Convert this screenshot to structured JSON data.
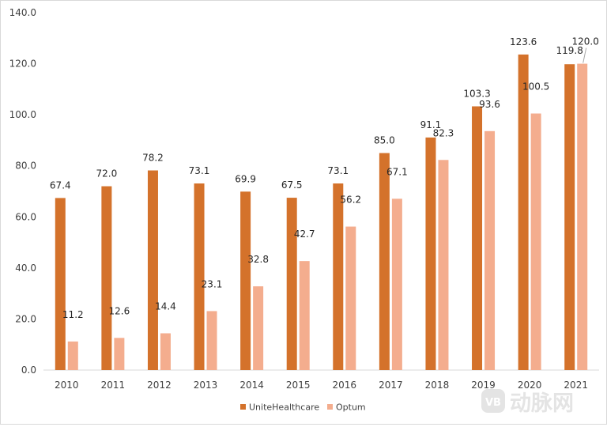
{
  "chart_data": {
    "type": "bar",
    "title": "",
    "xlabel": "",
    "ylabel": "",
    "ylim": [
      0,
      140
    ],
    "yticks": [
      "0.0",
      "20.0",
      "40.0",
      "60.0",
      "80.0",
      "100.0",
      "120.0",
      "140.0"
    ],
    "categories": [
      "2010",
      "2011",
      "2012",
      "2013",
      "2014",
      "2015",
      "2016",
      "2017",
      "2018",
      "2019",
      "2020",
      "2021"
    ],
    "series": [
      {
        "name": "UniteHealthcare",
        "color": "#D4722B",
        "values": [
          67.4,
          72.0,
          78.2,
          73.1,
          69.9,
          67.5,
          73.1,
          85.0,
          91.1,
          103.3,
          123.6,
          119.8
        ],
        "labels": [
          "67.4",
          "72.0",
          "78.2",
          "73.1",
          "69.9",
          "67.5",
          "73.1",
          "85.0",
          "91.1",
          "103.3",
          "123.6",
          "119.8"
        ]
      },
      {
        "name": "Optum",
        "color": "#F4AD8E",
        "values": [
          11.2,
          12.6,
          14.4,
          23.1,
          32.8,
          42.7,
          56.2,
          67.1,
          82.3,
          93.6,
          100.5,
          120.0
        ],
        "labels": [
          "11.2",
          "12.6",
          "14.4",
          "23.1",
          "32.8",
          "42.7",
          "56.2",
          "67.1",
          "82.3",
          "93.6",
          "100.5",
          "120.0"
        ]
      }
    ],
    "grid": false,
    "legend": "bottom-center",
    "watermark": {
      "mark": "VB",
      "text": "动脉网"
    }
  }
}
